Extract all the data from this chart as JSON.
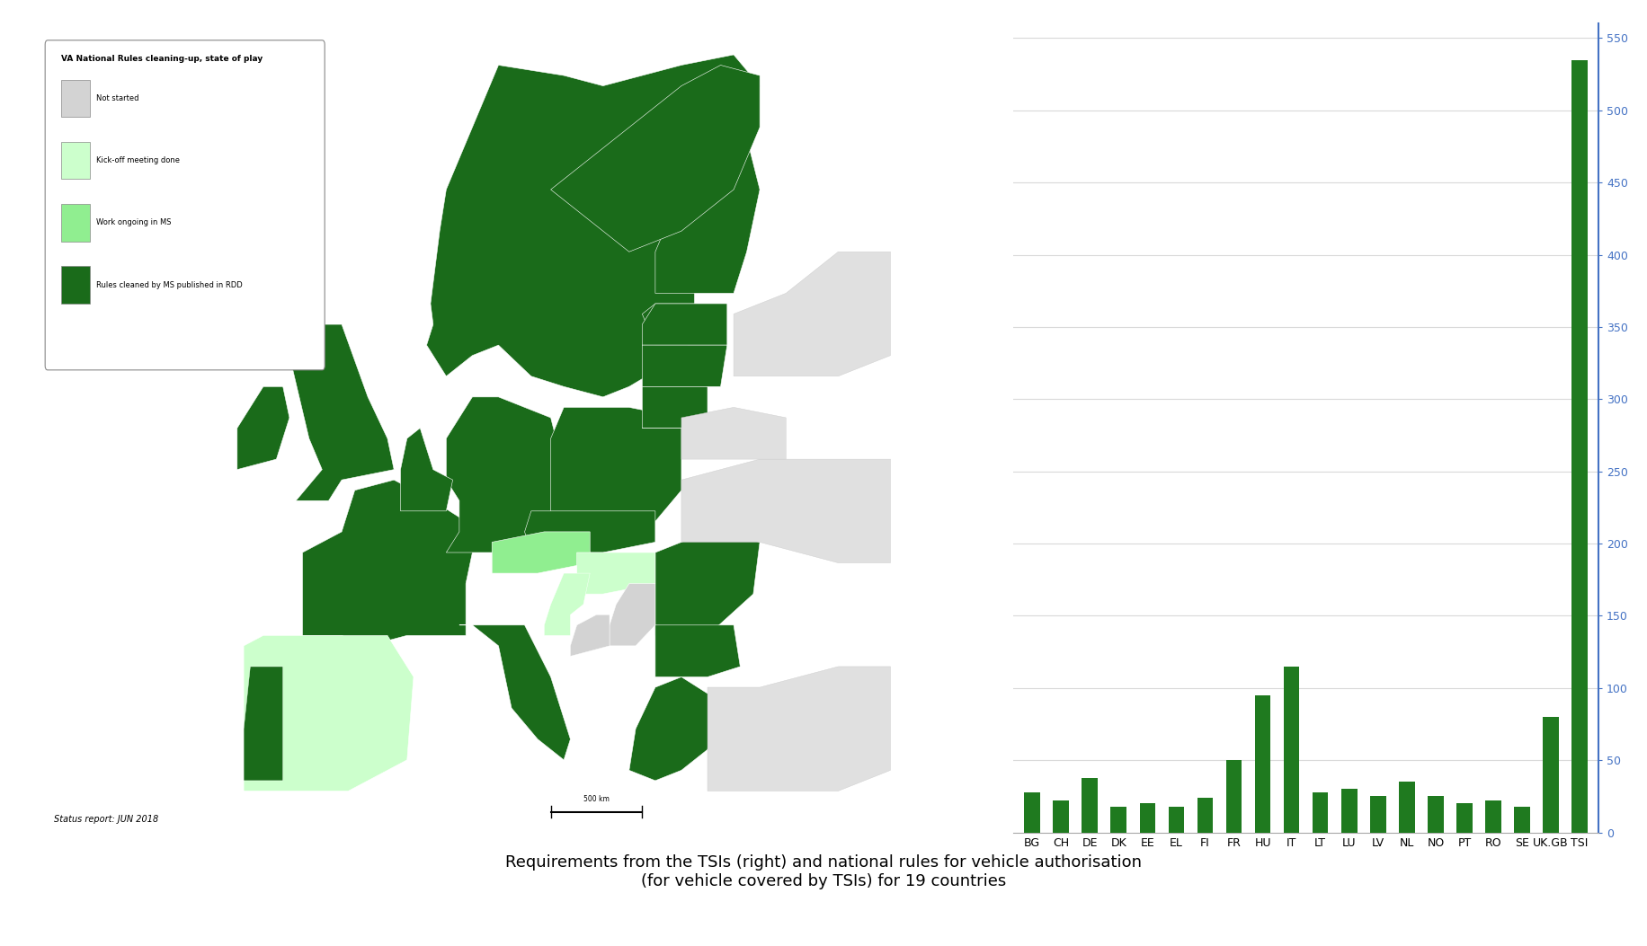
{
  "title": "Requirements from the TSIs (right) and national rules for vehicle authorisation\n(for vehicle covered by TSIs) for 19 countries",
  "categories": [
    "BG",
    "CH",
    "DE",
    "DK",
    "EE",
    "EL",
    "FI",
    "FR",
    "HU",
    "IT",
    "LT",
    "LU",
    "LV",
    "NL",
    "NO",
    "PT",
    "RO",
    "SE",
    "UK.GB",
    "TSI"
  ],
  "values": [
    28,
    22,
    38,
    18,
    20,
    18,
    24,
    50,
    95,
    115,
    28,
    30,
    25,
    35,
    25,
    20,
    22,
    18,
    80,
    535
  ],
  "bar_color": "#1F7A1F",
  "ylim": [
    0,
    560
  ],
  "yticks": [
    0,
    50,
    100,
    150,
    200,
    250,
    300,
    350,
    400,
    450,
    500,
    550
  ],
  "ylabel_color": "#4472C4",
  "grid_color": "#D9D9D9",
  "background_color": "#FFFFFF",
  "axis_color": "#4472C4",
  "caption_fontsize": 13,
  "bar_width": 0.55,
  "map_legend_title": "VA National Rules cleaning-up, state of play",
  "map_legend_items": [
    {
      "label": "Not started",
      "color": "#D3D3D3"
    },
    {
      "label": "Kick-off meeting done",
      "color": "#CCFFCC"
    },
    {
      "label": "Work ongoing in MS",
      "color": "#90EE90"
    },
    {
      "label": "Rules cleaned by MS published in RDD",
      "color": "#1A6B1A"
    }
  ],
  "map_status": "Status report: JUN 2018",
  "sea_color": "#C8E8F4",
  "dark_green": "#1A6B1A",
  "light_green": "#90EE90",
  "very_light_green": "#CCFFCC",
  "gray_color": "#D3D3D3",
  "land_gray": "#E0E0E0"
}
